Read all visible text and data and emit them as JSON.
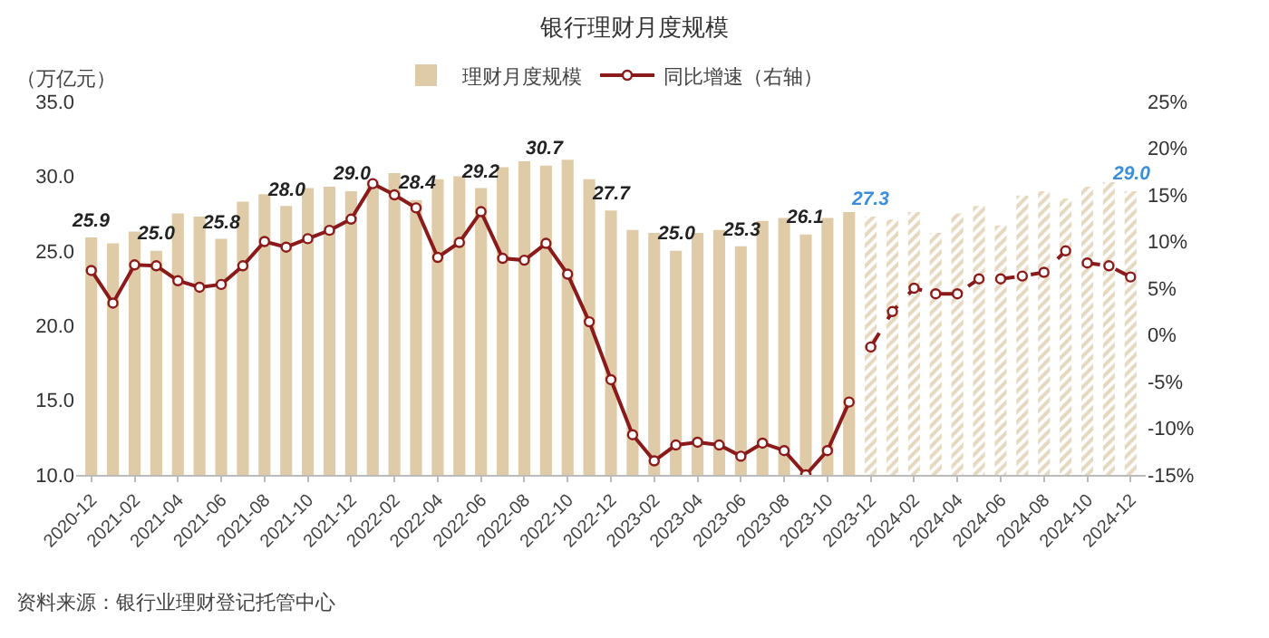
{
  "chart_data": {
    "type": "bar",
    "title": "银行理财月度规模",
    "ylabel": "（万亿元）",
    "categories": [
      "2020-12",
      null,
      "2021-02",
      null,
      "2021-04",
      null,
      "2021-06",
      null,
      "2021-08",
      null,
      "2021-10",
      null,
      "2021-12",
      null,
      "2022-02",
      null,
      "2022-04",
      null,
      "2022-06",
      null,
      "2022-08",
      null,
      "2022-10",
      null,
      "2022-12",
      null,
      "2023-02",
      null,
      "2023-04",
      null,
      "2023-06",
      null,
      "2023-08",
      null,
      "2023-10",
      null,
      "2023-12",
      null,
      "2024-02",
      null,
      "2024-04",
      null,
      "2024-06",
      null,
      "2024-08",
      null,
      "2024-10",
      null,
      "2024-12"
    ],
    "series": [
      {
        "name": "理财月度规模",
        "color": "#e0cba8",
        "values": [
          25.9,
          25.5,
          26.3,
          25.0,
          27.5,
          27.3,
          25.8,
          28.3,
          28.8,
          28.0,
          29.2,
          29.3,
          29.0,
          29.7,
          30.2,
          28.4,
          29.8,
          30.0,
          29.2,
          30.6,
          31.0,
          30.7,
          31.1,
          29.8,
          27.7,
          26.4,
          26.2,
          25.0,
          26.2,
          26.4,
          25.3,
          27.0,
          27.2,
          26.1,
          27.2,
          27.6,
          null,
          null,
          null,
          null,
          null,
          null,
          null,
          null,
          null,
          null,
          null,
          null,
          null
        ],
        "value_labels": [
          "25.9",
          null,
          null,
          "25.0",
          null,
          null,
          "25.8",
          null,
          null,
          "28.0",
          null,
          null,
          "29.0",
          null,
          null,
          "28.4",
          null,
          null,
          "29.2",
          null,
          null,
          "30.7",
          null,
          null,
          "27.7",
          null,
          null,
          "25.0",
          null,
          null,
          "25.3",
          null,
          null,
          "26.1",
          null,
          null,
          null,
          null,
          null,
          null,
          null,
          null,
          null,
          null,
          null,
          null,
          null,
          null,
          null
        ]
      },
      {
        "color": "#e6d8bf",
        "values": [
          null,
          null,
          null,
          null,
          null,
          null,
          null,
          null,
          null,
          null,
          null,
          null,
          null,
          null,
          null,
          null,
          null,
          null,
          null,
          null,
          null,
          null,
          null,
          null,
          null,
          null,
          null,
          null,
          null,
          null,
          null,
          null,
          null,
          null,
          null,
          null,
          27.3,
          27.1,
          27.6,
          26.2,
          27.5,
          28.0,
          26.7,
          28.7,
          29.0,
          28.5,
          29.3,
          29.6,
          29.0
        ],
        "value_labels": [
          null,
          null,
          null,
          null,
          null,
          null,
          null,
          null,
          null,
          null,
          null,
          null,
          null,
          null,
          null,
          null,
          null,
          null,
          null,
          null,
          null,
          null,
          null,
          null,
          null,
          null,
          null,
          null,
          null,
          null,
          null,
          null,
          null,
          null,
          null,
          null,
          "27.3",
          null,
          null,
          null,
          null,
          null,
          null,
          null,
          null,
          null,
          null,
          null,
          "29.0"
        ]
      },
      {
        "name": "同比增速（右轴）",
        "type": "line",
        "axis": "y2",
        "color": "#8b1a1a",
        "line_style": "solid",
        "marker": "circle",
        "values": [
          6.9,
          3.4,
          7.5,
          7.4,
          5.8,
          5.1,
          5.4,
          7.4,
          10.0,
          9.4,
          10.3,
          11.2,
          12.4,
          16.2,
          15.0,
          13.6,
          8.3,
          9.9,
          13.2,
          8.2,
          8.0,
          9.8,
          6.5,
          1.4,
          -4.8,
          -10.7,
          -13.5,
          -11.8,
          -11.5,
          -11.8,
          -13.0,
          -11.6,
          -12.4,
          -15.0,
          -12.4,
          -7.2,
          null,
          null,
          null,
          null,
          null,
          null,
          null,
          null,
          null,
          null,
          null,
          null,
          null
        ]
      },
      {
        "type": "line",
        "axis": "y2",
        "color": "#8b1a1a",
        "line_style": "dashed",
        "marker": "circle",
        "values": [
          null,
          null,
          null,
          null,
          null,
          null,
          null,
          null,
          null,
          null,
          null,
          null,
          null,
          null,
          null,
          null,
          null,
          null,
          null,
          null,
          null,
          null,
          null,
          null,
          null,
          null,
          null,
          null,
          null,
          null,
          null,
          null,
          null,
          null,
          null,
          null,
          -1.3,
          2.5,
          5.0,
          4.4,
          4.4,
          6.0,
          6.0,
          6.3,
          6.7,
          9.0,
          7.7,
          7.4,
          6.2
        ]
      }
    ],
    "ylim": [
      10,
      35
    ],
    "yticks": [
      {
        "value": 10,
        "label": "10.0"
      },
      {
        "value": 15,
        "label": "15.0"
      },
      {
        "value": 20,
        "label": "20.0"
      },
      {
        "value": 25,
        "label": "25.0"
      },
      {
        "value": 30,
        "label": "30.0"
      },
      {
        "value": 35,
        "label": "35.0"
      }
    ],
    "y2lim": [
      -15,
      25
    ],
    "y2ticks": [
      {
        "value": -15,
        "label": "-15%"
      },
      {
        "value": -10,
        "label": "-10%"
      },
      {
        "value": -5,
        "label": "-5%"
      },
      {
        "value": 0,
        "label": "0%"
      },
      {
        "value": 5,
        "label": "5%"
      },
      {
        "value": 10,
        "label": "10%"
      },
      {
        "value": 15,
        "label": "15%"
      },
      {
        "value": 20,
        "label": "20%"
      },
      {
        "value": 25,
        "label": "25%"
      }
    ],
    "grid": false,
    "legend": "top",
    "annotations": [
      "资料来源：银行业理财登记托管中心"
    ]
  }
}
